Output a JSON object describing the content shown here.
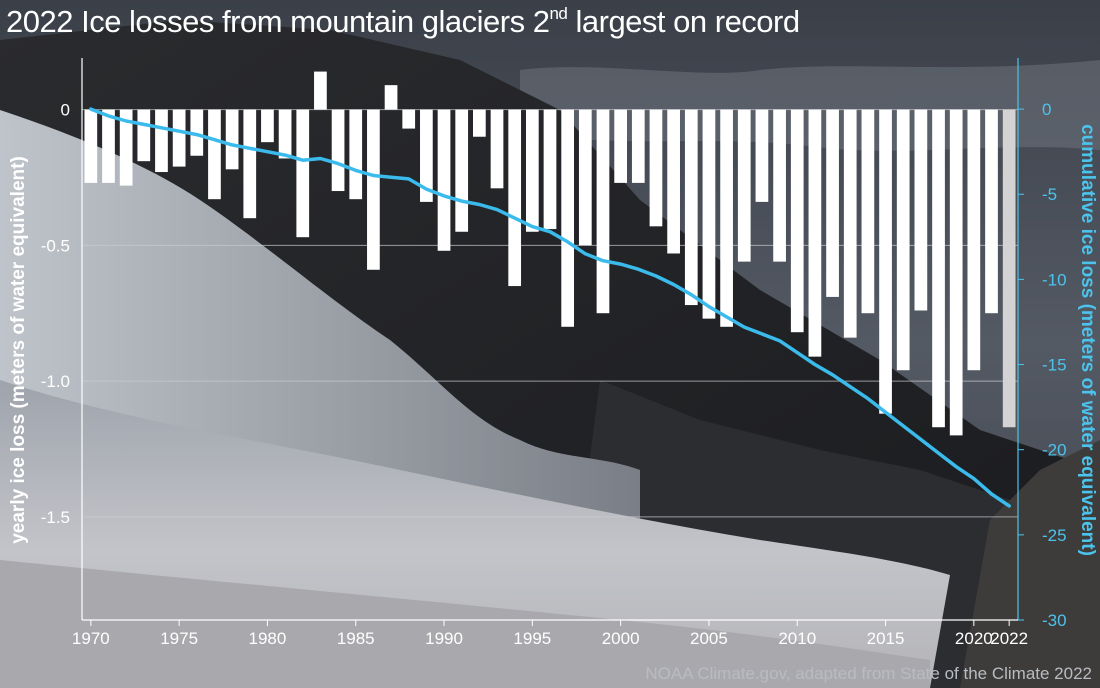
{
  "header": {
    "title_main": "2022 Ice losses from mountain glaciers 2",
    "title_sup": "nd",
    "title_end": " largest on record"
  },
  "credit": "NOAA Climate.gov, adapted from State of the Climate 2022",
  "colors": {
    "bar": "#ffffff",
    "bar_latest": "#d3d3d3",
    "cumulative_line": "#3bbbec",
    "right_axis": "#4cc3ec",
    "gridline": "#c9ccd2"
  },
  "chart_data": {
    "type": "bar",
    "title": "2022 Ice losses from mountain glaciers 2nd largest on record",
    "x": [
      1970,
      1971,
      1972,
      1973,
      1974,
      1975,
      1976,
      1977,
      1978,
      1979,
      1980,
      1981,
      1982,
      1983,
      1984,
      1985,
      1986,
      1987,
      1988,
      1989,
      1990,
      1991,
      1992,
      1993,
      1994,
      1995,
      1996,
      1997,
      1998,
      1999,
      2000,
      2001,
      2002,
      2003,
      2004,
      2005,
      2006,
      2007,
      2008,
      2009,
      2010,
      2011,
      2012,
      2013,
      2014,
      2015,
      2016,
      2017,
      2018,
      2019,
      2020,
      2021,
      2022
    ],
    "xlim": [
      1969.5,
      2022.5
    ],
    "x_ticks": [
      1970,
      1975,
      1980,
      1985,
      1990,
      1995,
      2000,
      2005,
      2010,
      2015,
      2020,
      2022
    ],
    "series": [
      {
        "axis": "left",
        "type": "bar",
        "values": [
          -0.27,
          -0.27,
          -0.28,
          -0.19,
          -0.23,
          -0.21,
          -0.17,
          -0.33,
          -0.22,
          -0.4,
          -0.12,
          -0.18,
          -0.47,
          0.14,
          -0.3,
          -0.33,
          -0.59,
          0.09,
          -0.07,
          -0.34,
          -0.52,
          -0.45,
          -0.1,
          -0.29,
          -0.65,
          -0.45,
          -0.44,
          -0.8,
          -0.5,
          -0.75,
          -0.27,
          -0.27,
          -0.43,
          -0.53,
          -0.72,
          -0.77,
          -0.8,
          -0.56,
          -0.34,
          -0.56,
          -0.82,
          -0.91,
          -0.69,
          -0.84,
          -0.75,
          -1.12,
          -0.96,
          -0.74,
          -1.17,
          -1.2,
          -0.96,
          -0.75,
          -1.17
        ]
      },
      {
        "axis": "right",
        "type": "line",
        "values": [
          0,
          -0.4,
          -0.7,
          -0.9,
          -1.1,
          -1.3,
          -1.5,
          -1.8,
          -2.1,
          -2.3,
          -2.5,
          -2.7,
          -3.0,
          -2.9,
          -3.2,
          -3.6,
          -3.9,
          -4.0,
          -4.1,
          -4.7,
          -5.1,
          -5.4,
          -5.6,
          -5.9,
          -6.4,
          -6.9,
          -7.2,
          -7.8,
          -8.5,
          -8.9,
          -9.1,
          -9.4,
          -9.8,
          -10.3,
          -10.9,
          -11.6,
          -12.2,
          -12.8,
          -13.2,
          -13.6,
          -14.3,
          -15.0,
          -15.6,
          -16.3,
          -17.0,
          -17.8,
          -18.6,
          -19.4,
          -20.2,
          -21.0,
          -21.7,
          -22.6,
          -23.3
        ]
      }
    ],
    "y_left": {
      "ylabel": "yearly ice loss (meters of water equivalent)",
      "ylim": [
        -1.88,
        0.19
      ],
      "ticks": [
        0,
        -0.5,
        -1.0,
        -1.5
      ],
      "tick_labels": [
        "0",
        "-0.5",
        "-1.0",
        "-1.5"
      ]
    },
    "y_right": {
      "ylabel": "cumulative ice loss (meters of water equivalent)",
      "ylim": [
        -30,
        3
      ],
      "ticks": [
        0,
        -5,
        -10,
        -15,
        -20,
        -25,
        -30
      ],
      "tick_labels": [
        "0",
        "-5",
        "-10",
        "-15",
        "-20",
        "-25",
        "-30"
      ]
    },
    "grid": true,
    "legend": "none"
  }
}
